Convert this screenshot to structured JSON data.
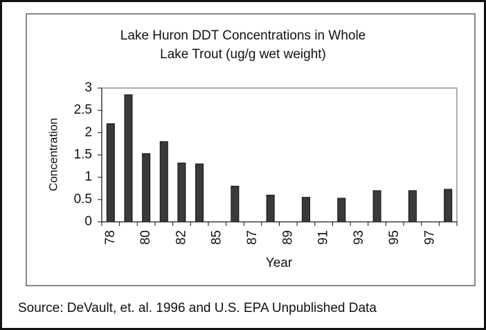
{
  "chart_data": {
    "type": "bar",
    "title": [
      "Lake Huron DDT Concentrations in Whole",
      "Lake Trout (ug/g wet weight)"
    ],
    "x_label": "Year",
    "y_label": "Concentration",
    "categories": [
      "78",
      null,
      "80",
      null,
      "82",
      null,
      "85",
      null,
      "87",
      null,
      "89",
      null,
      "91",
      null,
      "93",
      null,
      "95",
      null,
      "97",
      null
    ],
    "values": [
      2.2,
      2.85,
      1.53,
      1.8,
      1.32,
      1.3,
      null,
      0.8,
      null,
      0.6,
      null,
      0.55,
      null,
      0.53,
      null,
      0.7,
      null,
      0.7,
      null,
      0.73
    ],
    "color": "#3a3a3a",
    "ylim": [
      0,
      3
    ],
    "yticks": [
      0,
      0.5,
      1,
      1.5,
      2,
      2.5,
      3
    ],
    "grid": false,
    "source": "Source: DeVault, et. al. 1996 and U.S. EPA Unpublished Data"
  }
}
